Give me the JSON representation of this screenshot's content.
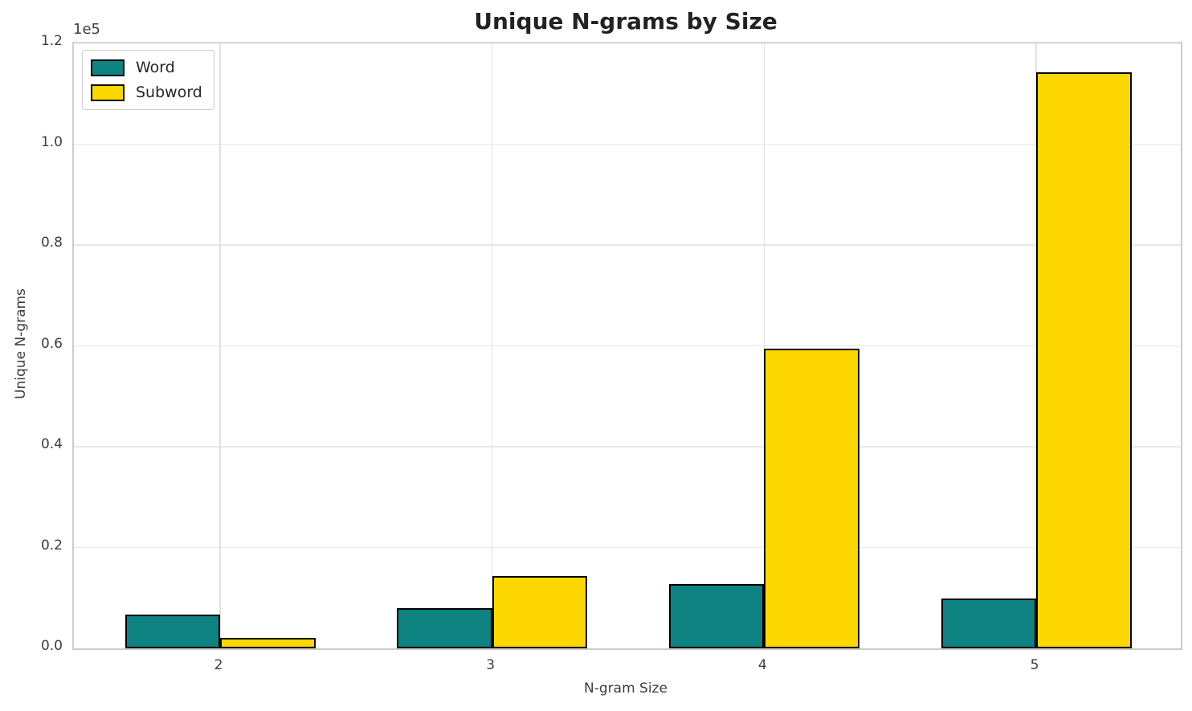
{
  "chart_data": {
    "type": "bar",
    "title": "Unique N-grams by Size",
    "xlabel": "N-gram Size",
    "ylabel": "Unique N-grams",
    "y_offset_label": "1e5",
    "categories": [
      "2",
      "3",
      "4",
      "5"
    ],
    "series": [
      {
        "name": "Word",
        "color": "#0f8282",
        "values": [
          6700,
          8000,
          12800,
          9900
        ]
      },
      {
        "name": "Subword",
        "color": "#ffd700",
        "values": [
          2100,
          14400,
          59400,
          114300
        ]
      }
    ],
    "ylim": [
      0,
      120000
    ],
    "yticks": [
      0,
      20000,
      40000,
      60000,
      80000,
      100000,
      120000
    ],
    "ytick_labels": [
      "0.0",
      "0.2",
      "0.4",
      "0.6",
      "0.8",
      "1.0",
      "1.2"
    ],
    "bar_edge_color": "#000000",
    "grid": true,
    "legend_position": "upper left"
  }
}
